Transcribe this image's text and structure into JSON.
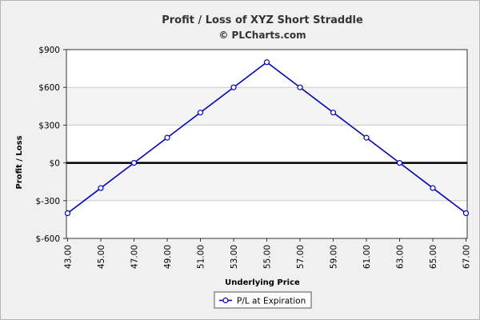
{
  "chart_data": {
    "type": "line",
    "title": "Profit / Loss of XYZ Short Straddle",
    "subtitle": "© PLCharts.com",
    "xlabel": "Underlying Price",
    "ylabel": "Profit / Loss",
    "x": [
      "43.00",
      "45.00",
      "47.00",
      "49.00",
      "51.00",
      "53.00",
      "55.00",
      "57.00",
      "59.00",
      "61.00",
      "63.00",
      "65.00",
      "67.00"
    ],
    "y_ticks": [
      {
        "value": 900,
        "label": "$900"
      },
      {
        "value": 600,
        "label": "$600"
      },
      {
        "value": 300,
        "label": "$300"
      },
      {
        "value": 0,
        "label": "$0"
      },
      {
        "value": -300,
        "label": "$-300"
      },
      {
        "value": -600,
        "label": "$-600"
      }
    ],
    "ylim": [
      -600,
      900
    ],
    "grid": true,
    "legend_position": "bottom-center",
    "series": [
      {
        "name": "P/L at Expiration",
        "color": "#0000cc",
        "values": [
          -400,
          -200,
          0,
          200,
          400,
          600,
          800,
          600,
          400,
          200,
          0,
          -200,
          -400
        ]
      }
    ],
    "zero_line_color": "#000000"
  }
}
